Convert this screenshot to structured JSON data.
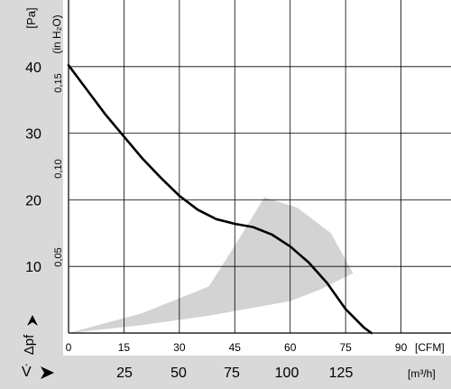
{
  "chart_data": {
    "type": "line",
    "x_axis_cfm": {
      "ticks": [
        "0",
        "15",
        "30",
        "45",
        "60",
        "75",
        "90"
      ],
      "unit": "[CFM]",
      "range": [
        0,
        105
      ]
    },
    "x_axis_m3h": {
      "symbol": "V̇",
      "ticks": [
        "25",
        "50",
        "75",
        "100",
        "125"
      ],
      "unit": "[m³/h]"
    },
    "y_axis_pa": {
      "unit": "[Pa]",
      "ticks": [
        "40",
        "30",
        "20",
        "10"
      ],
      "symbol": "Δpf",
      "range": [
        0,
        50
      ]
    },
    "y_axis_inh2o": {
      "unit": "(in H₂O)",
      "ticks": [
        "0,15",
        "0,10",
        "0,05"
      ]
    },
    "grid": true,
    "series": [
      {
        "values_note": "",
        "x": [
          0,
          5,
          10,
          15,
          20,
          25,
          30,
          35,
          40,
          45,
          50,
          55,
          60,
          65,
          70,
          75,
          80,
          82
        ],
        "y": [
          40.2,
          36.5,
          32.8,
          29.5,
          26.2,
          23.3,
          20.6,
          18.5,
          17.1,
          16.4,
          15.9,
          14.8,
          13.0,
          10.6,
          7.5,
          3.6,
          0.8,
          0
        ]
      }
    ],
    "shaded_region": {
      "x": [
        0,
        20,
        38,
        46,
        53,
        62,
        71,
        75,
        77,
        68,
        60,
        50,
        38,
        20,
        0
      ],
      "y": [
        0,
        3,
        7,
        14,
        20.4,
        18.8,
        15,
        11,
        9,
        6.5,
        4.8,
        3.8,
        2.6,
        1.2,
        0
      ]
    }
  }
}
